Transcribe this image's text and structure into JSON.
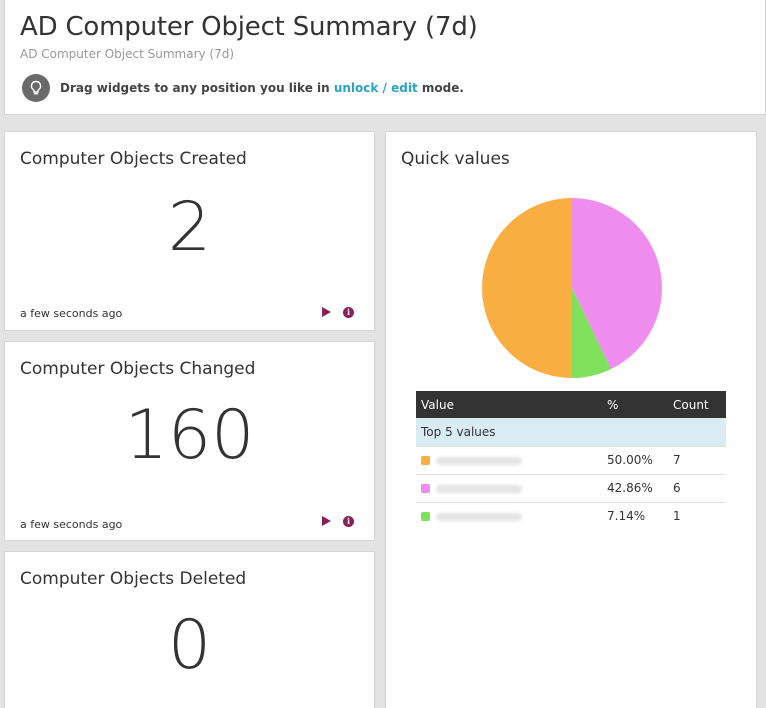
{
  "header": {
    "title": "AD Computer Object Summary (7d)",
    "subtitle": "AD Computer Object Summary (7d)",
    "hint_prefix": "Drag widgets to any position you like in ",
    "hint_link": "unlock / edit",
    "hint_suffix": " mode."
  },
  "widgets": {
    "created": {
      "title": "Computer Objects Created",
      "value": "2",
      "updated": "a few seconds ago"
    },
    "changed": {
      "title": "Computer Objects Changed",
      "value": "160",
      "updated": "a few seconds ago"
    },
    "deleted": {
      "title": "Computer Objects Deleted",
      "value": "0"
    }
  },
  "quick_values": {
    "title": "Quick values",
    "table": {
      "col_value": "Value",
      "col_percent": "%",
      "col_count": "Count",
      "group_label": "Top 5 values",
      "rows": [
        {
          "percent": "50.00%",
          "count": "7",
          "color": "#f9ae42"
        },
        {
          "percent": "42.86%",
          "count": "6",
          "color": "#ee8ded"
        },
        {
          "percent": "7.14%",
          "count": "1",
          "color": "#7ee05b"
        }
      ]
    }
  },
  "chart_data": {
    "type": "pie",
    "values": [
      50.0,
      42.86,
      7.14
    ],
    "colors": [
      "#f9ae42",
      "#ee8ded",
      "#7ee05b"
    ]
  },
  "icons": {
    "hint": "lightbulb-icon",
    "run": "play-icon",
    "info": "info-icon"
  }
}
